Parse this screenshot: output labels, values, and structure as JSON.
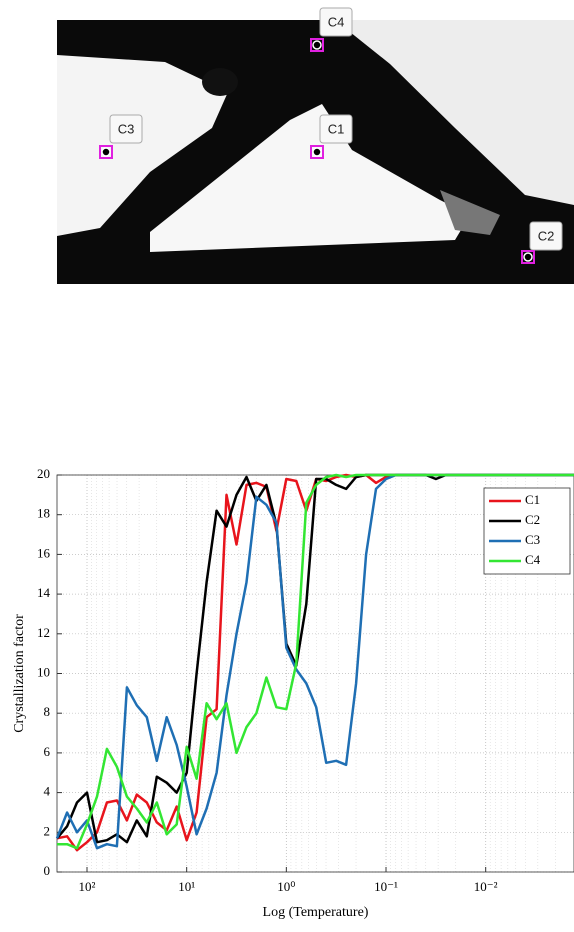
{
  "image": {
    "markers": [
      {
        "label": "C1"
      },
      {
        "label": "C2"
      },
      {
        "label": "C3"
      },
      {
        "label": "C4"
      }
    ]
  },
  "chart_data": {
    "type": "line",
    "xlabel": "Log (Temperature)",
    "ylabel": "Crystallization factor",
    "xscale": "log",
    "grid": true,
    "legend": "upper right",
    "xlim": [
      200,
      0.0013
    ],
    "ylim": [
      0,
      20
    ],
    "xticks": [
      {
        "value": 100,
        "label": "10²"
      },
      {
        "value": 10,
        "label": "10¹"
      },
      {
        "value": 1,
        "label": "10⁰"
      },
      {
        "value": 0.1,
        "label": "10⁻¹"
      },
      {
        "value": 0.01,
        "label": "10⁻²"
      }
    ],
    "yticks": [
      0,
      2,
      4,
      6,
      8,
      10,
      12,
      14,
      16,
      18,
      20
    ],
    "x": [
      200,
      158.5,
      125.9,
      100,
      79.43,
      63.1,
      50.12,
      39.81,
      31.62,
      25.12,
      19.95,
      15.85,
      12.59,
      10,
      7.943,
      6.31,
      5.012,
      3.981,
      3.162,
      2.512,
      1.995,
      1.585,
      1.259,
      1,
      0.7943,
      0.631,
      0.5012,
      0.3981,
      0.3162,
      0.2512,
      0.1995,
      0.1585,
      0.1259,
      0.1,
      0.07943,
      0.0631,
      0.05012,
      0.03981,
      0.03162,
      0.02512,
      0.01995,
      0.01585,
      0.01259,
      0.01,
      0.007943,
      0.00631,
      0.005012,
      0.003981,
      0.003162,
      0.002512,
      0.001995,
      0.001585,
      0.001259
    ],
    "series": [
      {
        "name": "C1",
        "color": "#e8141c",
        "values": [
          1.7,
          1.8,
          1.1,
          1.5,
          2.0,
          3.5,
          3.6,
          2.6,
          3.9,
          3.5,
          2.5,
          2.1,
          3.3,
          1.6,
          3.0,
          7.8,
          8.2,
          19.0,
          16.5,
          19.5,
          19.6,
          19.4,
          17.2,
          19.8,
          19.7,
          18.2,
          19.8,
          19.7,
          19.9,
          20,
          19.9,
          20,
          19.6,
          19.9,
          20,
          20,
          20,
          20,
          20,
          20,
          20,
          20,
          20,
          20,
          20,
          20,
          20,
          20,
          20,
          20,
          20,
          20,
          20
        ]
      },
      {
        "name": "C2",
        "color": "#000000",
        "values": [
          1.7,
          2.3,
          3.5,
          4.0,
          1.5,
          1.6,
          1.9,
          1.5,
          2.6,
          1.8,
          4.8,
          4.5,
          4.0,
          5.0,
          10.0,
          14.6,
          18.2,
          17.4,
          19.0,
          19.9,
          18.7,
          19.5,
          17.5,
          11.5,
          10.4,
          13.5,
          19.8,
          19.8,
          19.5,
          19.3,
          19.9,
          20,
          20,
          20,
          20,
          20,
          20,
          20,
          19.8,
          20,
          20,
          20,
          20,
          20,
          20,
          20,
          20,
          20,
          20,
          20,
          20,
          20,
          20
        ]
      },
      {
        "name": "C3",
        "color": "#1f6fb4",
        "values": [
          1.7,
          3.0,
          2.0,
          2.6,
          1.2,
          1.4,
          1.3,
          9.3,
          8.4,
          7.8,
          5.6,
          7.8,
          6.4,
          4.3,
          1.9,
          3.2,
          5.0,
          8.9,
          12.0,
          14.6,
          18.9,
          18.5,
          17.6,
          11.3,
          10.2,
          9.5,
          8.3,
          5.5,
          5.6,
          5.4,
          9.5,
          16.0,
          19.3,
          19.8,
          20,
          20,
          20,
          20,
          20,
          20,
          20,
          20,
          20,
          20,
          20,
          20,
          20,
          20,
          20,
          20,
          20,
          20,
          20
        ]
      },
      {
        "name": "C4",
        "color": "#33e633",
        "values": [
          1.4,
          1.4,
          1.2,
          2.4,
          3.8,
          6.2,
          5.3,
          3.8,
          3.2,
          2.5,
          3.5,
          1.9,
          2.4,
          6.3,
          4.7,
          8.5,
          7.7,
          8.5,
          6.0,
          7.3,
          8.0,
          9.8,
          8.3,
          8.2,
          10.5,
          18.6,
          19.5,
          19.9,
          20,
          19.9,
          20,
          20,
          20,
          20,
          20,
          20,
          20,
          20,
          20,
          20,
          20,
          20,
          20,
          20,
          20,
          20,
          20,
          20,
          20,
          20,
          20,
          20,
          20
        ]
      }
    ]
  }
}
